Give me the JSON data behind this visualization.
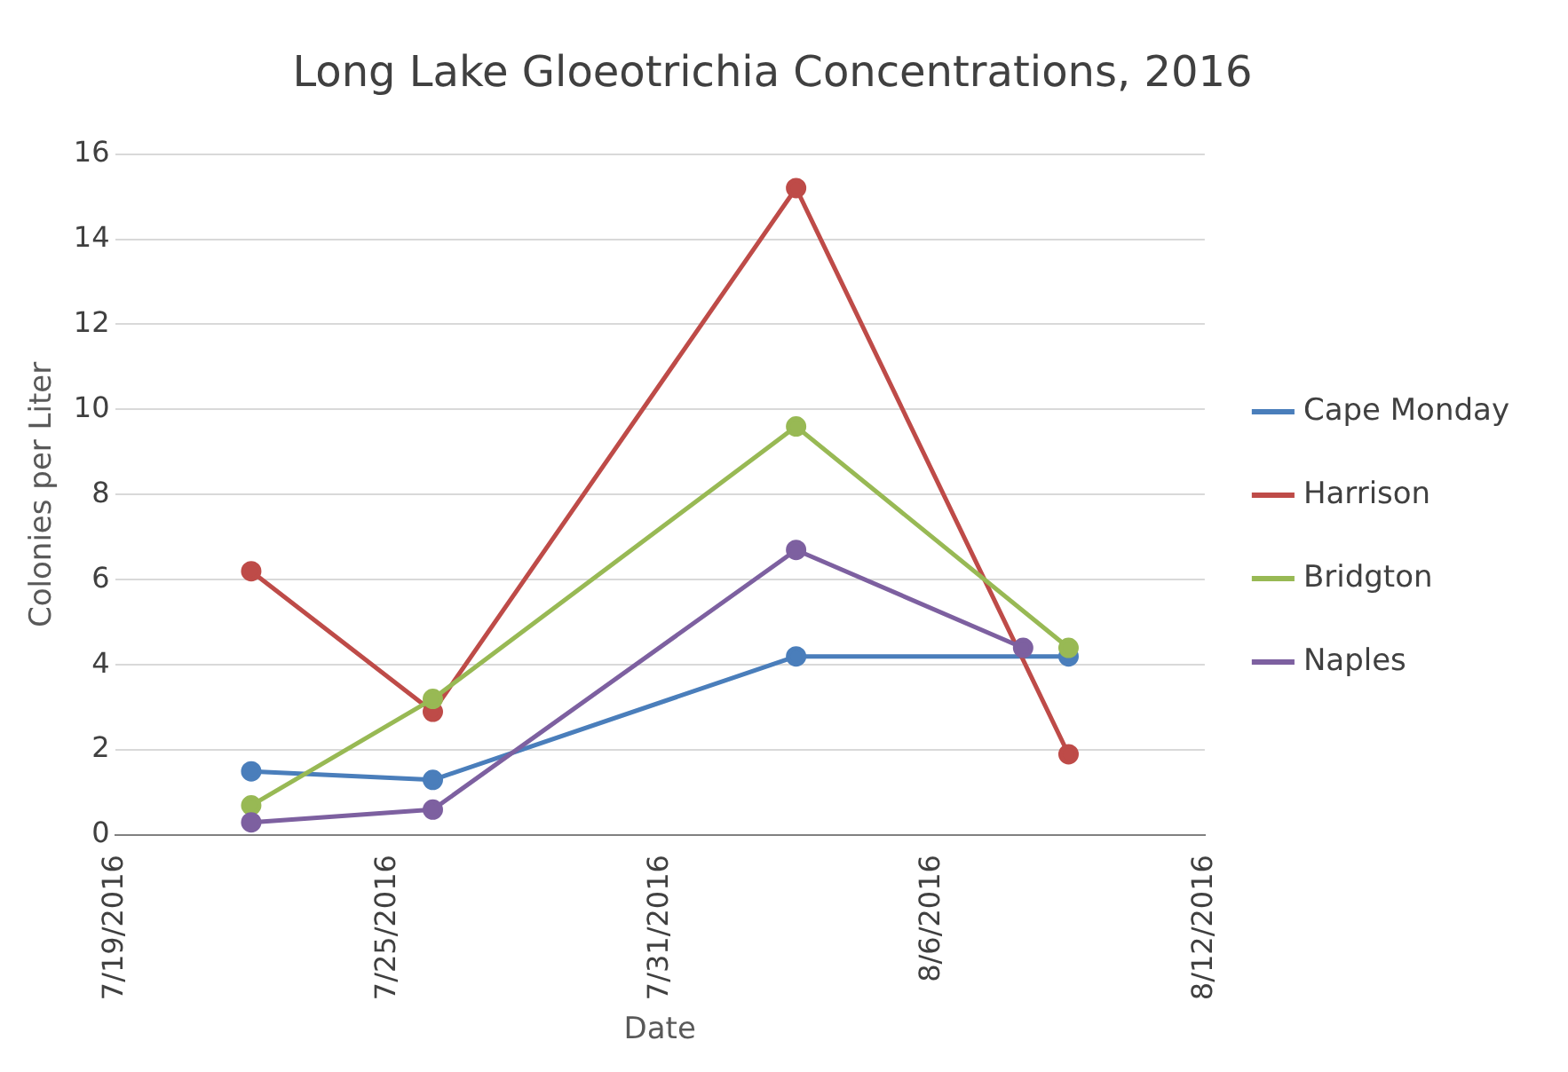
{
  "chart_data": {
    "type": "line",
    "title": "Long Lake Gloeotrichia Concentrations, 2016",
    "xlabel": "Date",
    "ylabel": "Colonies per Liter",
    "x": [
      "2016-07-22",
      "2016-07-26",
      "2016-08-03",
      "2016-08-09"
    ],
    "series": [
      {
        "name": "Cape Monday",
        "color": "#4a7ebb",
        "values": [
          1.5,
          1.3,
          4.2,
          4.2
        ]
      },
      {
        "name": "Harrison",
        "color": "#be4b48",
        "values": [
          6.2,
          2.9,
          15.2,
          1.9
        ]
      },
      {
        "name": "Bridgton",
        "color": "#98b954",
        "values": [
          0.7,
          3.2,
          9.6,
          4.4
        ]
      },
      {
        "name": "Naples",
        "color": "#7d60a0",
        "x": [
          "2016-07-22",
          "2016-07-26",
          "2016-08-03",
          "2016-08-08"
        ],
        "values": [
          0.3,
          0.6,
          6.7,
          4.4
        ]
      }
    ],
    "xlim": [
      "2016-07-19",
      "2016-08-12"
    ],
    "xticks": [
      {
        "value": "2016-07-19",
        "label": "7/19/2016"
      },
      {
        "value": "2016-07-25",
        "label": "7/25/2016"
      },
      {
        "value": "2016-07-31",
        "label": "7/31/2016"
      },
      {
        "value": "2016-08-06",
        "label": "8/6/2016"
      },
      {
        "value": "2016-08-12",
        "label": "8/12/2016"
      }
    ],
    "ylim": [
      0,
      16
    ],
    "yticks": [
      0,
      2,
      4,
      6,
      8,
      10,
      12,
      14,
      16
    ],
    "grid": "y",
    "legend": "right",
    "marker": "circle",
    "line_style": "solid"
  }
}
